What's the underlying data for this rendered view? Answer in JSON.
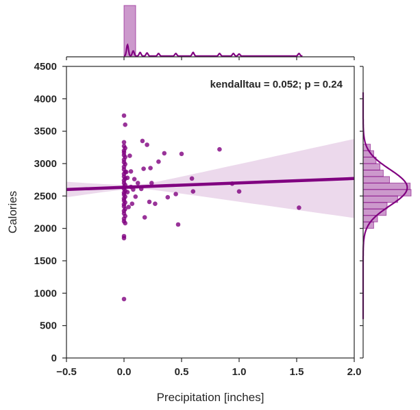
{
  "chart_data": {
    "type": "scatter",
    "subtype": "jointplot-regression",
    "title": "",
    "xlabel": "Precipitation [inches]",
    "ylabel": "Calories",
    "xlim": [
      -0.5,
      2.0
    ],
    "ylim": [
      0,
      4500
    ],
    "x_ticks": [
      "-0.5",
      "0.0",
      "0.5",
      "1.0",
      "1.5",
      "2.0"
    ],
    "y_ticks": [
      "0",
      "500",
      "1000",
      "1500",
      "2000",
      "2500",
      "3000",
      "3500",
      "4000",
      "4500"
    ],
    "annotation": "kendalltau = 0.052; p = 0.24",
    "grid": false,
    "color": "#800080",
    "regression": {
      "x": [
        -0.5,
        2.0
      ],
      "y": [
        2600,
        2770
      ],
      "ci_upper_at_xmax": 3580,
      "ci_lower_at_xmax": 2360,
      "ci_upper_at_xmin": 2720,
      "ci_lower_at_xmin": 2480
    },
    "points": [
      {
        "x": 0.0,
        "y": 3740
      },
      {
        "x": 0.01,
        "y": 3600
      },
      {
        "x": 0.0,
        "y": 3330
      },
      {
        "x": 0.0,
        "y": 3270
      },
      {
        "x": 0.01,
        "y": 3240
      },
      {
        "x": 0.0,
        "y": 3200
      },
      {
        "x": 0.0,
        "y": 3170
      },
      {
        "x": 0.0,
        "y": 3130
      },
      {
        "x": 0.01,
        "y": 3100
      },
      {
        "x": 0.0,
        "y": 3060
      },
      {
        "x": 0.0,
        "y": 3020
      },
      {
        "x": 0.01,
        "y": 2990
      },
      {
        "x": 0.0,
        "y": 2950
      },
      {
        "x": 0.0,
        "y": 2910
      },
      {
        "x": 0.01,
        "y": 2870
      },
      {
        "x": 0.0,
        "y": 2840
      },
      {
        "x": 0.0,
        "y": 2800
      },
      {
        "x": 0.01,
        "y": 2770
      },
      {
        "x": 0.0,
        "y": 2740
      },
      {
        "x": 0.0,
        "y": 2700
      },
      {
        "x": 0.01,
        "y": 2670
      },
      {
        "x": 0.0,
        "y": 2640
      },
      {
        "x": 0.0,
        "y": 2610
      },
      {
        "x": 0.01,
        "y": 2580
      },
      {
        "x": 0.0,
        "y": 2550
      },
      {
        "x": 0.0,
        "y": 2520
      },
      {
        "x": 0.01,
        "y": 2490
      },
      {
        "x": 0.0,
        "y": 2460
      },
      {
        "x": 0.0,
        "y": 2430
      },
      {
        "x": 0.01,
        "y": 2400
      },
      {
        "x": 0.0,
        "y": 2370
      },
      {
        "x": 0.0,
        "y": 2340
      },
      {
        "x": 0.01,
        "y": 2300
      },
      {
        "x": 0.0,
        "y": 2270
      },
      {
        "x": 0.0,
        "y": 2230
      },
      {
        "x": 0.01,
        "y": 2190
      },
      {
        "x": 0.0,
        "y": 2150
      },
      {
        "x": 0.0,
        "y": 2110
      },
      {
        "x": 0.01,
        "y": 2080
      },
      {
        "x": 0.0,
        "y": 1880
      },
      {
        "x": 0.0,
        "y": 1850
      },
      {
        "x": 0.0,
        "y": 910
      },
      {
        "x": 0.02,
        "y": 2870
      },
      {
        "x": 0.03,
        "y": 2780
      },
      {
        "x": 0.03,
        "y": 2560
      },
      {
        "x": 0.04,
        "y": 2330
      },
      {
        "x": 0.05,
        "y": 3120
      },
      {
        "x": 0.06,
        "y": 2880
      },
      {
        "x": 0.06,
        "y": 2640
      },
      {
        "x": 0.07,
        "y": 2380
      },
      {
        "x": 0.08,
        "y": 2600
      },
      {
        "x": 0.09,
        "y": 2760
      },
      {
        "x": 0.1,
        "y": 2490
      },
      {
        "x": 0.12,
        "y": 2700
      },
      {
        "x": 0.15,
        "y": 2610
      },
      {
        "x": 0.16,
        "y": 3350
      },
      {
        "x": 0.17,
        "y": 2920
      },
      {
        "x": 0.18,
        "y": 2170
      },
      {
        "x": 0.2,
        "y": 3290
      },
      {
        "x": 0.22,
        "y": 2410
      },
      {
        "x": 0.23,
        "y": 2930
      },
      {
        "x": 0.24,
        "y": 2700
      },
      {
        "x": 0.27,
        "y": 2380
      },
      {
        "x": 0.3,
        "y": 3030
      },
      {
        "x": 0.35,
        "y": 3160
      },
      {
        "x": 0.38,
        "y": 2480
      },
      {
        "x": 0.45,
        "y": 2530
      },
      {
        "x": 0.47,
        "y": 2060
      },
      {
        "x": 0.5,
        "y": 3150
      },
      {
        "x": 0.59,
        "y": 2770
      },
      {
        "x": 0.6,
        "y": 2570
      },
      {
        "x": 0.83,
        "y": 3220
      },
      {
        "x": 0.94,
        "y": 2690
      },
      {
        "x": 1.0,
        "y": 2570
      },
      {
        "x": 1.52,
        "y": 2320
      }
    ],
    "marginal_x": {
      "hist_bin_width": 0.1,
      "hist_bins": [
        {
          "x0": 0.0,
          "x1": 0.1,
          "count": 1.0
        }
      ],
      "kde_baseline_range": [
        0.0,
        1.55
      ],
      "kde_peaks": [
        {
          "x": 0.03,
          "height": 0.22
        },
        {
          "x": 0.08,
          "height": 0.1
        },
        {
          "x": 0.14,
          "height": 0.07
        },
        {
          "x": 0.2,
          "height": 0.06
        },
        {
          "x": 0.3,
          "height": 0.05
        },
        {
          "x": 0.45,
          "height": 0.05
        },
        {
          "x": 0.6,
          "height": 0.07
        },
        {
          "x": 0.83,
          "height": 0.05
        },
        {
          "x": 0.95,
          "height": 0.05
        },
        {
          "x": 1.0,
          "height": 0.04
        },
        {
          "x": 1.52,
          "height": 0.05
        }
      ]
    },
    "marginal_y": {
      "hist_bin_width": 100,
      "hist_bins": [
        {
          "y0": 3200,
          "y1": 3300,
          "count": 0.15
        },
        {
          "y0": 3100,
          "y1": 3200,
          "count": 0.22
        },
        {
          "y0": 3000,
          "y1": 3100,
          "count": 0.27
        },
        {
          "y0": 2900,
          "y1": 3000,
          "count": 0.35
        },
        {
          "y0": 2800,
          "y1": 2900,
          "count": 0.42
        },
        {
          "y0": 2700,
          "y1": 2800,
          "count": 0.55
        },
        {
          "y0": 2600,
          "y1": 2700,
          "count": 0.98
        },
        {
          "y0": 2500,
          "y1": 2600,
          "count": 1.0
        },
        {
          "y0": 2400,
          "y1": 2500,
          "count": 0.72
        },
        {
          "y0": 2300,
          "y1": 2400,
          "count": 0.5
        },
        {
          "y0": 2200,
          "y1": 2300,
          "count": 0.48
        },
        {
          "y0": 2100,
          "y1": 2200,
          "count": 0.3
        },
        {
          "y0": 2000,
          "y1": 2100,
          "count": 0.22
        }
      ],
      "kde": {
        "mean": 2630,
        "sd": 280,
        "peak": 0.92,
        "y_range": [
          600,
          4100
        ]
      }
    }
  }
}
